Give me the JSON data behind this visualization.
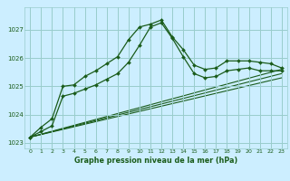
{
  "title": "Graphe pression niveau de la mer (hPa)",
  "bg_color": "#cceeff",
  "grid_color": "#99cccc",
  "line_color": "#1a5c1a",
  "xlim": [
    -0.5,
    23.5
  ],
  "ylim": [
    1022.8,
    1027.8
  ],
  "yticks": [
    1023,
    1024,
    1025,
    1026,
    1027
  ],
  "xticks": [
    0,
    1,
    2,
    3,
    4,
    5,
    6,
    7,
    8,
    9,
    10,
    11,
    12,
    13,
    14,
    15,
    16,
    17,
    18,
    19,
    20,
    21,
    22,
    23
  ],
  "series1": {
    "x": [
      0,
      1,
      2,
      3,
      4,
      5,
      6,
      7,
      8,
      9,
      10,
      11,
      12,
      13,
      14,
      15,
      16,
      17,
      18,
      19,
      20,
      21,
      22,
      23
    ],
    "y": [
      1023.2,
      1023.55,
      1023.85,
      1025.0,
      1025.05,
      1025.35,
      1025.55,
      1025.8,
      1026.05,
      1026.65,
      1027.1,
      1027.2,
      1027.35,
      1026.75,
      1026.3,
      1025.75,
      1025.6,
      1025.65,
      1025.9,
      1025.9,
      1025.9,
      1025.85,
      1025.8,
      1025.65
    ]
  },
  "series2": {
    "x": [
      0,
      1,
      2,
      3,
      4,
      5,
      6,
      7,
      8,
      9,
      10,
      11,
      12,
      13,
      14,
      15,
      16,
      17,
      18,
      19,
      20,
      21,
      22,
      23
    ],
    "y": [
      1023.2,
      1023.4,
      1023.6,
      1024.65,
      1024.75,
      1024.9,
      1025.05,
      1025.25,
      1025.45,
      1025.85,
      1026.45,
      1027.1,
      1027.25,
      1026.7,
      1026.05,
      1025.45,
      1025.3,
      1025.35,
      1025.55,
      1025.6,
      1025.65,
      1025.55,
      1025.55,
      1025.55
    ]
  },
  "straight_lines": [
    {
      "x0": 0,
      "y0": 1023.2,
      "x1": 23,
      "y1": 1025.6
    },
    {
      "x0": 0,
      "y0": 1023.2,
      "x1": 23,
      "y1": 1025.45
    },
    {
      "x0": 0,
      "y0": 1023.2,
      "x1": 23,
      "y1": 1025.3
    }
  ]
}
